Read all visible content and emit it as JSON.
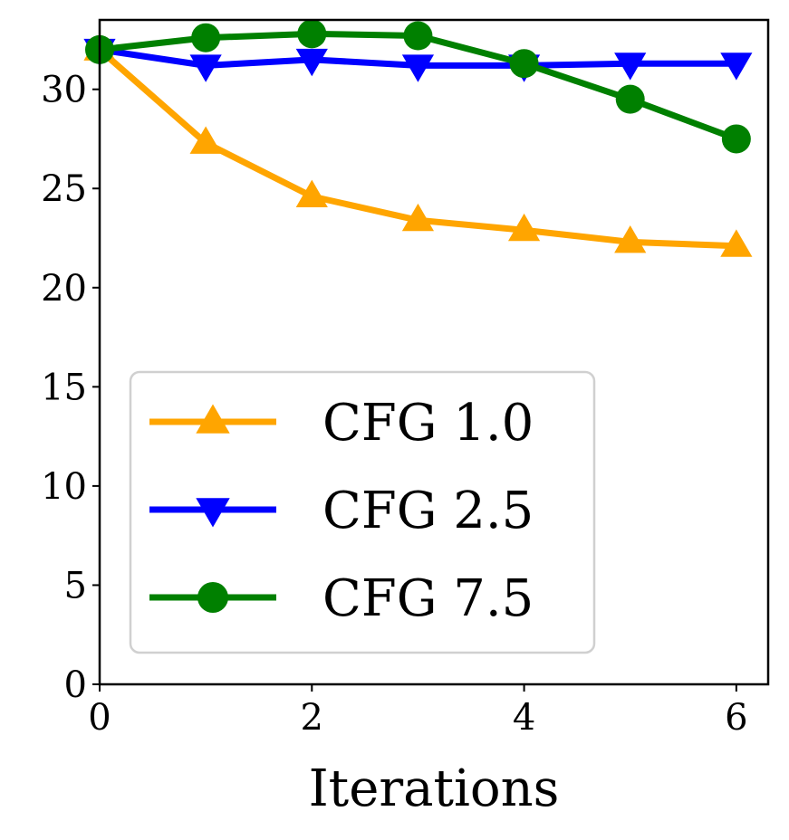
{
  "chart_data": {
    "type": "line",
    "title": "",
    "xlabel": "Iterations",
    "ylabel": "",
    "xlim": [
      0,
      6.3
    ],
    "ylim": [
      0,
      33.5
    ],
    "xticks": [
      0,
      2,
      4,
      6
    ],
    "yticks": [
      0,
      5,
      10,
      15,
      20,
      25,
      30
    ],
    "x": [
      0,
      1,
      2,
      3,
      4,
      5,
      6
    ],
    "series": [
      {
        "name": "CFG 1.0",
        "color": "#ffa500",
        "marker": "triangle-up",
        "values": [
          32.0,
          27.3,
          24.6,
          23.4,
          22.9,
          22.3,
          22.1
        ]
      },
      {
        "name": "CFG 2.5",
        "color": "#0000ff",
        "marker": "triangle-down",
        "values": [
          32.0,
          31.2,
          31.5,
          31.2,
          31.2,
          31.3,
          31.3
        ]
      },
      {
        "name": "CFG 7.5",
        "color": "#008000",
        "marker": "circle",
        "values": [
          32.0,
          32.6,
          32.8,
          32.7,
          31.3,
          29.5,
          27.5
        ]
      }
    ],
    "legend_position": "lower-left"
  }
}
